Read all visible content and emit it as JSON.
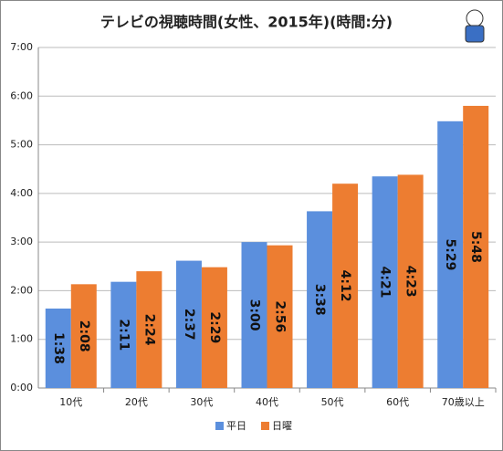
{
  "chart_data": {
    "type": "bar",
    "title": "テレビの視聴時間(女性、2015年)(時間:分)",
    "categories": [
      "10代",
      "20代",
      "30代",
      "40代",
      "50代",
      "60代",
      "70歳以上"
    ],
    "series": [
      {
        "name": "平日",
        "color": "#5b8fdd",
        "values": [
          1.6333,
          2.1833,
          2.6167,
          3,
          3.6333,
          4.35,
          5.4833
        ],
        "value_labels": [
          "1:38",
          "2:11",
          "2:37",
          "3:00",
          "3:38",
          "4:21",
          "5:29"
        ]
      },
      {
        "name": "日曜",
        "color": "#ed7d31",
        "values": [
          2.1333,
          2.4,
          2.4833,
          2.9333,
          4.2,
          4.3833,
          5.8
        ],
        "value_labels": [
          "2:08",
          "2:24",
          "2:29",
          "2:56",
          "4:12",
          "4:23",
          "5:48"
        ]
      }
    ],
    "ylim": [
      0,
      7
    ],
    "yticks": [
      {
        "value": 0,
        "label": "0:00"
      },
      {
        "value": 1,
        "label": "1:00"
      },
      {
        "value": 2,
        "label": "2:00"
      },
      {
        "value": 3,
        "label": "3:00"
      },
      {
        "value": 4,
        "label": "4:00"
      },
      {
        "value": 5,
        "label": "5:00"
      },
      {
        "value": 6,
        "label": "6:00"
      },
      {
        "value": 7,
        "label": "7:00"
      }
    ],
    "grid": true,
    "legend": "bottom"
  }
}
